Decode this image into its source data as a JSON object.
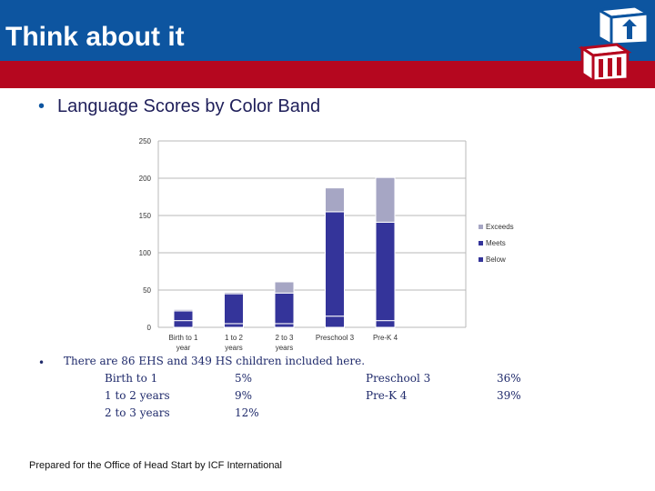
{
  "header": {
    "title": "Think about it"
  },
  "bullet": {
    "marker": "•",
    "text": "Language Scores by Color Band"
  },
  "chart_data": {
    "type": "bar",
    "stacked": true,
    "categories": [
      "Birth to 1 year",
      "1 to 2 years",
      "2 to 3 years",
      "Preschool 3",
      "Pre-K 4"
    ],
    "series": [
      {
        "name": "Below",
        "color": "#34349a",
        "values": [
          9,
          5,
          5,
          15,
          9
        ]
      },
      {
        "name": "Meets",
        "color": "#34349a",
        "values": [
          13,
          40,
          41,
          140,
          132
        ]
      },
      {
        "name": "Exceeds",
        "color": "#a6a6c4",
        "values": [
          2,
          2,
          15,
          32,
          60
        ]
      }
    ],
    "yticks": [
      0,
      50,
      100,
      150,
      200,
      250
    ],
    "ylim": [
      0,
      250
    ],
    "grid": true,
    "legend": "right",
    "legend_order": [
      "Exceeds",
      "Meets",
      "Below"
    ]
  },
  "summary": {
    "marker": "•",
    "intro": "There are 86 EHS and 349 HS children included here.",
    "left_rows": [
      {
        "label": "Birth to 1",
        "pct": "5%"
      },
      {
        "label": "1 to 2 years",
        "pct": "9%"
      },
      {
        "label": "2 to 3 years",
        "pct": "12%"
      }
    ],
    "right_rows": [
      {
        "label": "Preschool 3",
        "pct": "36%"
      },
      {
        "label": "Pre-K 4",
        "pct": "39%"
      }
    ]
  },
  "footer": {
    "text": "Prepared for the Office of Head Start by ICF International"
  }
}
